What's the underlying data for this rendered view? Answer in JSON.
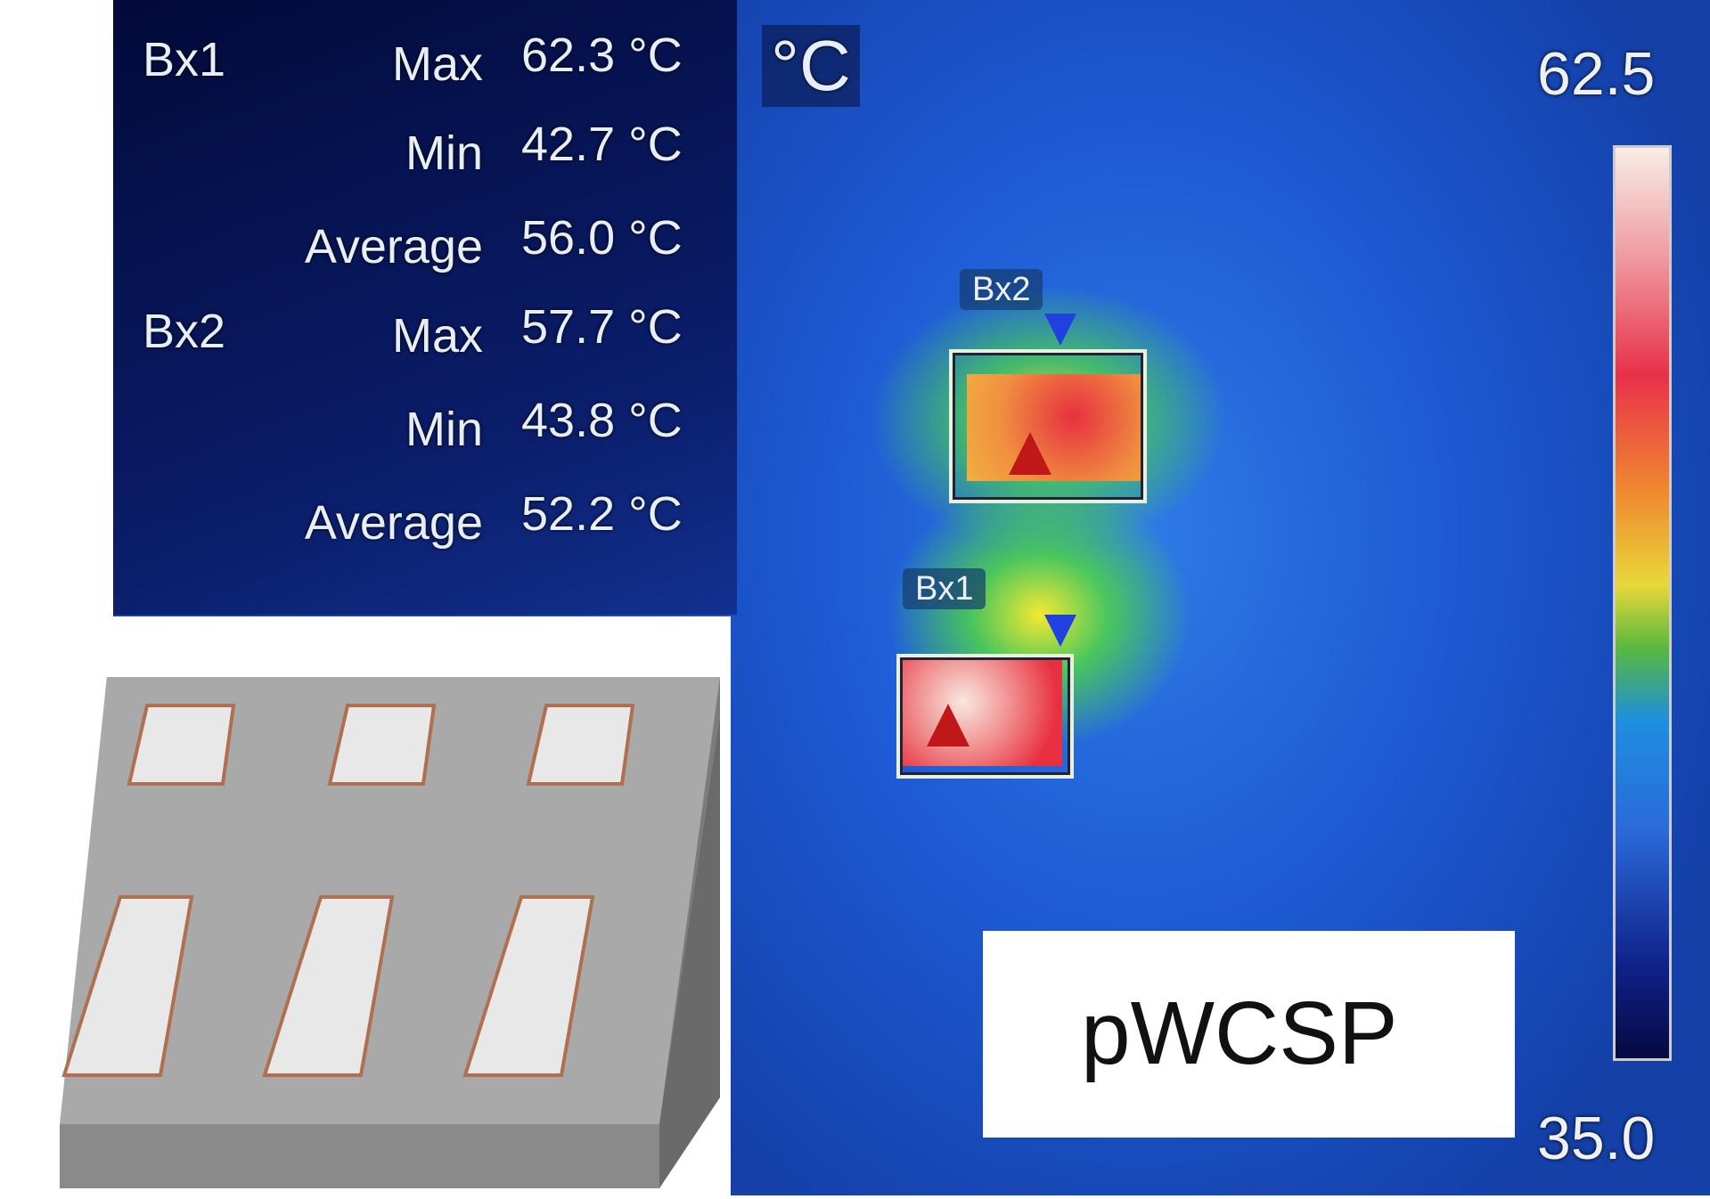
{
  "readout": {
    "boxes": [
      {
        "name": "Bx1",
        "rows": [
          {
            "label": "Max",
            "value": "62.3 °C"
          },
          {
            "label": "Min",
            "value": "42.7 °C"
          },
          {
            "label": "Average",
            "value": "56.0 °C"
          }
        ]
      },
      {
        "name": "Bx2",
        "rows": [
          {
            "label": "Max",
            "value": "57.7 °C"
          },
          {
            "label": "Min",
            "value": "43.8 °C"
          },
          {
            "label": "Average",
            "value": "52.2 °C"
          }
        ]
      }
    ],
    "unit": "°C"
  },
  "scale": {
    "max": "62.5",
    "min": "35.0",
    "palette": "iron/rainbow"
  },
  "roi_labels": {
    "bx1": "Bx1",
    "bx2": "Bx2"
  },
  "package_label": "pWCSP",
  "colors": {
    "background": "#1d5ad4",
    "hot": "#e8304a"
  }
}
